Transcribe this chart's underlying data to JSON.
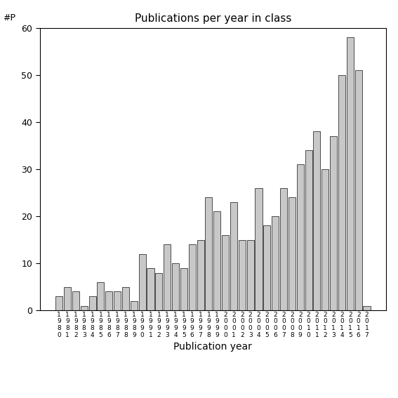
{
  "years": [
    1980,
    1981,
    1982,
    1983,
    1984,
    1985,
    1986,
    1987,
    1988,
    1989,
    1990,
    1991,
    1992,
    1993,
    1994,
    1995,
    1996,
    1997,
    1998,
    1999,
    2000,
    2001,
    2002,
    2003,
    2004,
    2005,
    2006,
    2007,
    2008,
    2009,
    2010,
    2011,
    2012,
    2013,
    2014,
    2015,
    2016,
    2017
  ],
  "values": [
    3,
    5,
    4,
    1,
    3,
    6,
    4,
    4,
    5,
    2,
    12,
    9,
    8,
    14,
    10,
    9,
    14,
    15,
    24,
    21,
    16,
    23,
    15,
    15,
    26,
    18,
    20,
    26,
    24,
    31,
    34,
    38,
    30,
    37,
    50,
    58,
    51,
    1
  ],
  "title": "Publications per year in class",
  "xlabel": "Publication year",
  "ylabel_annotation": "#P",
  "ylim": [
    0,
    60
  ],
  "yticks": [
    0,
    10,
    20,
    30,
    40,
    50,
    60
  ],
  "bar_color": "#c8c8c8",
  "bar_edgecolor": "#333333",
  "background_color": "#ffffff",
  "figsize": [
    5.67,
    5.67
  ],
  "dpi": 100
}
